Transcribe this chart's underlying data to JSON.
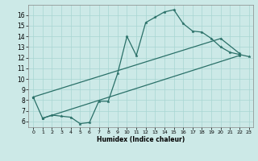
{
  "xlabel": "Humidex (Indice chaleur)",
  "bg_color": "#cce9e7",
  "line_color": "#2a7068",
  "grid_color": "#a8d5d2",
  "xlim": [
    -0.5,
    23.5
  ],
  "ylim": [
    5.5,
    17.0
  ],
  "xticks": [
    0,
    1,
    2,
    3,
    4,
    5,
    6,
    7,
    8,
    9,
    10,
    11,
    12,
    13,
    14,
    15,
    16,
    17,
    18,
    19,
    20,
    21,
    22,
    23
  ],
  "yticks": [
    6,
    7,
    8,
    9,
    10,
    11,
    12,
    13,
    14,
    15,
    16
  ],
  "line1_x": [
    0,
    1,
    2,
    3,
    4,
    5,
    6,
    7,
    8,
    9,
    10,
    11,
    12,
    13,
    14,
    15,
    16,
    17,
    18,
    19,
    20,
    21,
    22,
    23
  ],
  "line1_y": [
    8.3,
    6.3,
    6.6,
    6.5,
    6.4,
    5.8,
    5.9,
    7.9,
    7.9,
    10.5,
    14.0,
    12.2,
    15.3,
    15.8,
    16.3,
    16.5,
    15.2,
    14.5,
    14.4,
    13.8,
    13.0,
    12.5,
    12.3,
    12.1
  ],
  "line2_x": [
    1,
    22
  ],
  "line2_y": [
    6.3,
    12.2
  ],
  "line3_x": [
    0,
    20,
    22
  ],
  "line3_y": [
    8.3,
    13.8,
    12.4
  ],
  "marker_size": 2.5,
  "line_width": 0.9
}
